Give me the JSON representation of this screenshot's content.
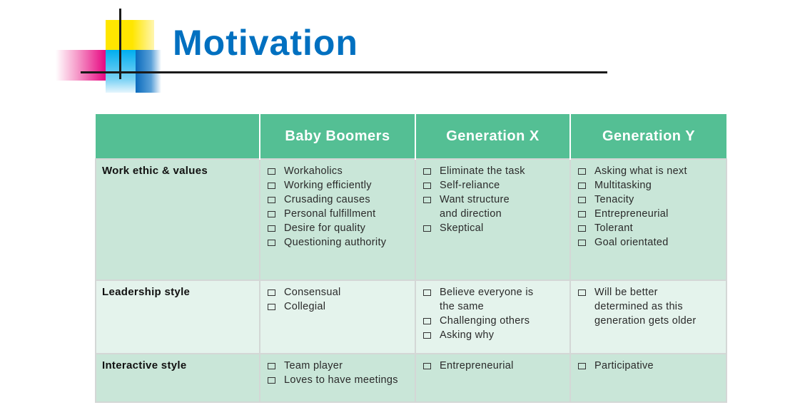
{
  "title": "Motivation",
  "colors": {
    "title": "#0070c0",
    "header": "#54bf94",
    "row_dark": "#c9e6d8",
    "row_light": "#e4f3ec"
  },
  "table": {
    "headers": [
      "",
      "Baby Boomers",
      "Generation X",
      "Generation Y"
    ],
    "rows": [
      {
        "label": "Work ethic & values",
        "cells": [
          [
            "Workaholics",
            "Working efficiently",
            "Crusading causes",
            "Personal fulfillment",
            "Desire for quality",
            "Questioning authority"
          ],
          [
            "Eliminate the task",
            "Self-reliance",
            "Want structure\nand direction",
            "Skeptical"
          ],
          [
            "Asking what is next",
            "Multitasking",
            "Tenacity",
            "Entrepreneurial",
            "Tolerant",
            "Goal orientated"
          ]
        ]
      },
      {
        "label": "Leadership style",
        "cells": [
          [
            "Consensual",
            "Collegial"
          ],
          [
            "Believe everyone is\nthe same",
            "Challenging others",
            "Asking why"
          ],
          [
            "Will be better\ndetermined as this\ngeneration gets older"
          ]
        ]
      },
      {
        "label": "Interactive style",
        "cells": [
          [
            "Team player",
            "Loves to have meetings"
          ],
          [
            "Entrepreneurial"
          ],
          [
            "Participative"
          ]
        ]
      }
    ]
  }
}
